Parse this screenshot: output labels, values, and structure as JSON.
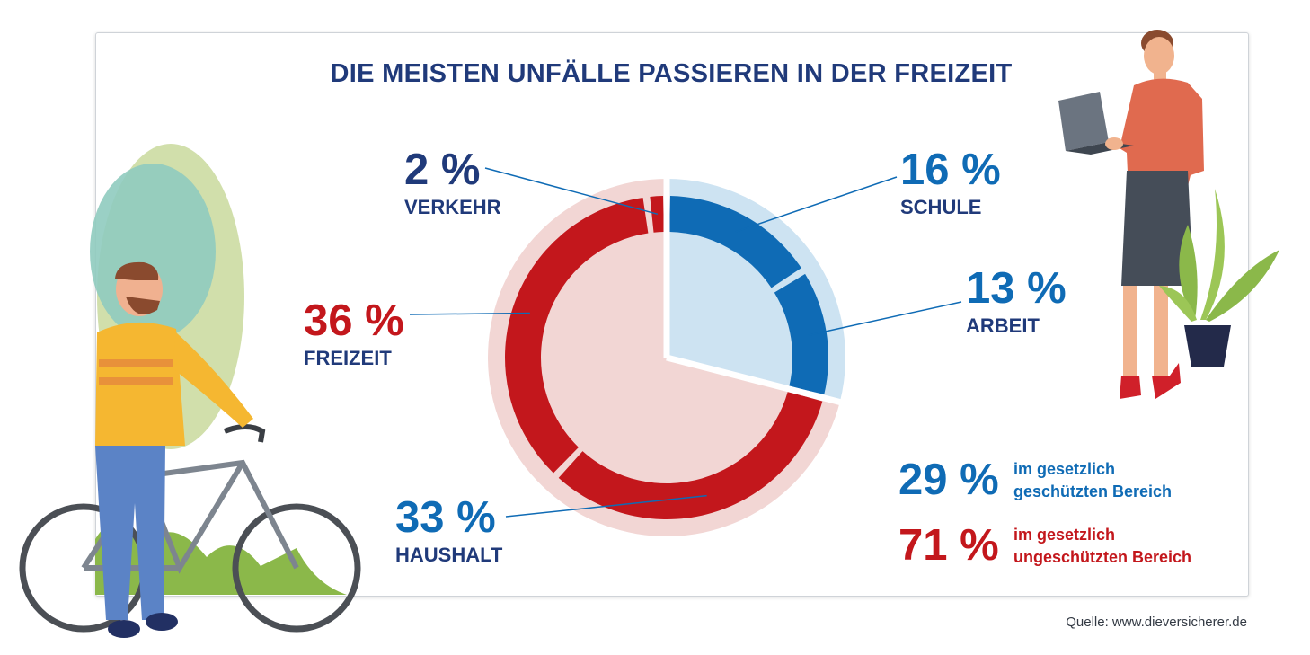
{
  "title": "DIE MEISTEN UNFÄLLE PASSIEREN IN DER FREIZEIT",
  "source": "Quelle: www.dieversicherer.de",
  "colors": {
    "protected": "#0f6bb5",
    "protected_light": "#cde3f2",
    "unprotected": "#c3171c",
    "unprotected_light": "#f2d6d4",
    "title": "#203a7a"
  },
  "chart_data": {
    "type": "pie",
    "title": "DIE MEISTEN UNFÄLLE PASSIEREN IN DER FREIZEIT",
    "slices": [
      {
        "label": "SCHULE",
        "value": 16,
        "value_label": "16 %",
        "group": "protected"
      },
      {
        "label": "ARBEIT",
        "value": 13,
        "value_label": "13 %",
        "group": "protected"
      },
      {
        "label": "HAUSHALT",
        "value": 33,
        "value_label": "33 %",
        "group": "unprotected"
      },
      {
        "label": "FREIZEIT",
        "value": 36,
        "value_label": "36 %",
        "group": "unprotected"
      },
      {
        "label": "VERKEHR",
        "value": 2,
        "value_label": "2 %",
        "group": "unprotected"
      }
    ],
    "groups": [
      {
        "name": "protected",
        "value": 29,
        "value_label": "29 %",
        "text_line1": "im gesetzlich",
        "text_line2": "geschützten Bereich"
      },
      {
        "name": "unprotected",
        "value": 71,
        "value_label": "71 %",
        "text_line1": "im gesetzlich",
        "text_line2": "ungeschützten Bereich"
      }
    ]
  }
}
